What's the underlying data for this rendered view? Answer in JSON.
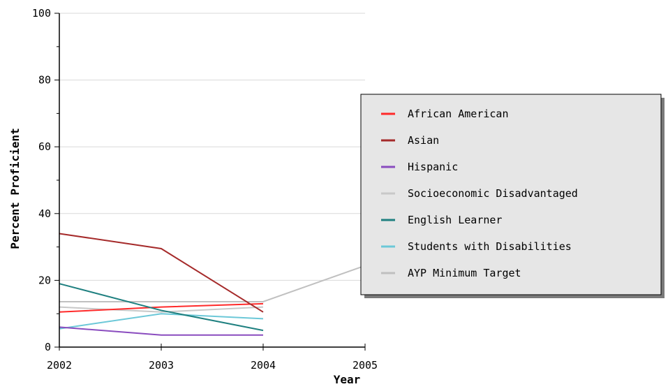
{
  "chart_data": {
    "type": "line",
    "xlabel": "Year",
    "ylabel": "Percent Proficient",
    "x": [
      2002,
      2003,
      2004,
      2005
    ],
    "xlim": [
      2002,
      2005
    ],
    "ylim": [
      0,
      100
    ],
    "y_ticks": [
      0,
      20,
      40,
      60,
      80,
      100
    ],
    "grid": true,
    "legend_position": "right",
    "series": [
      {
        "name": "African American",
        "color": "#ff2a2a",
        "points": [
          [
            2002,
            10.5
          ],
          [
            2003,
            12
          ],
          [
            2004,
            13
          ]
        ]
      },
      {
        "name": "Asian",
        "color": "#a52a2a",
        "points": [
          [
            2002,
            34
          ],
          [
            2003,
            29.5
          ],
          [
            2004,
            10.5
          ]
        ]
      },
      {
        "name": "Hispanic",
        "color": "#8a4cbf",
        "points": [
          [
            2002,
            6
          ],
          [
            2003,
            3.6
          ],
          [
            2004,
            3.6
          ]
        ]
      },
      {
        "name": "Socioeconomic Disadvantaged",
        "color": "#c8c8c8",
        "points": [
          [
            2002,
            12
          ],
          [
            2003,
            10.5
          ],
          [
            2004,
            12
          ]
        ]
      },
      {
        "name": "English Learner",
        "color": "#1f8080",
        "points": [
          [
            2002,
            19
          ],
          [
            2003,
            11
          ],
          [
            2004,
            5
          ]
        ]
      },
      {
        "name": "Students with Disabilities",
        "color": "#6cc8d8",
        "points": [
          [
            2002,
            5.5
          ],
          [
            2003,
            10
          ],
          [
            2004,
            8.5
          ]
        ]
      },
      {
        "name": "AYP Minimum Target",
        "color": "#c0c0c0",
        "points": [
          [
            2002,
            13.6
          ],
          [
            2003,
            13.6
          ],
          [
            2004,
            13.6
          ],
          [
            2005,
            24.4
          ]
        ]
      }
    ]
  }
}
